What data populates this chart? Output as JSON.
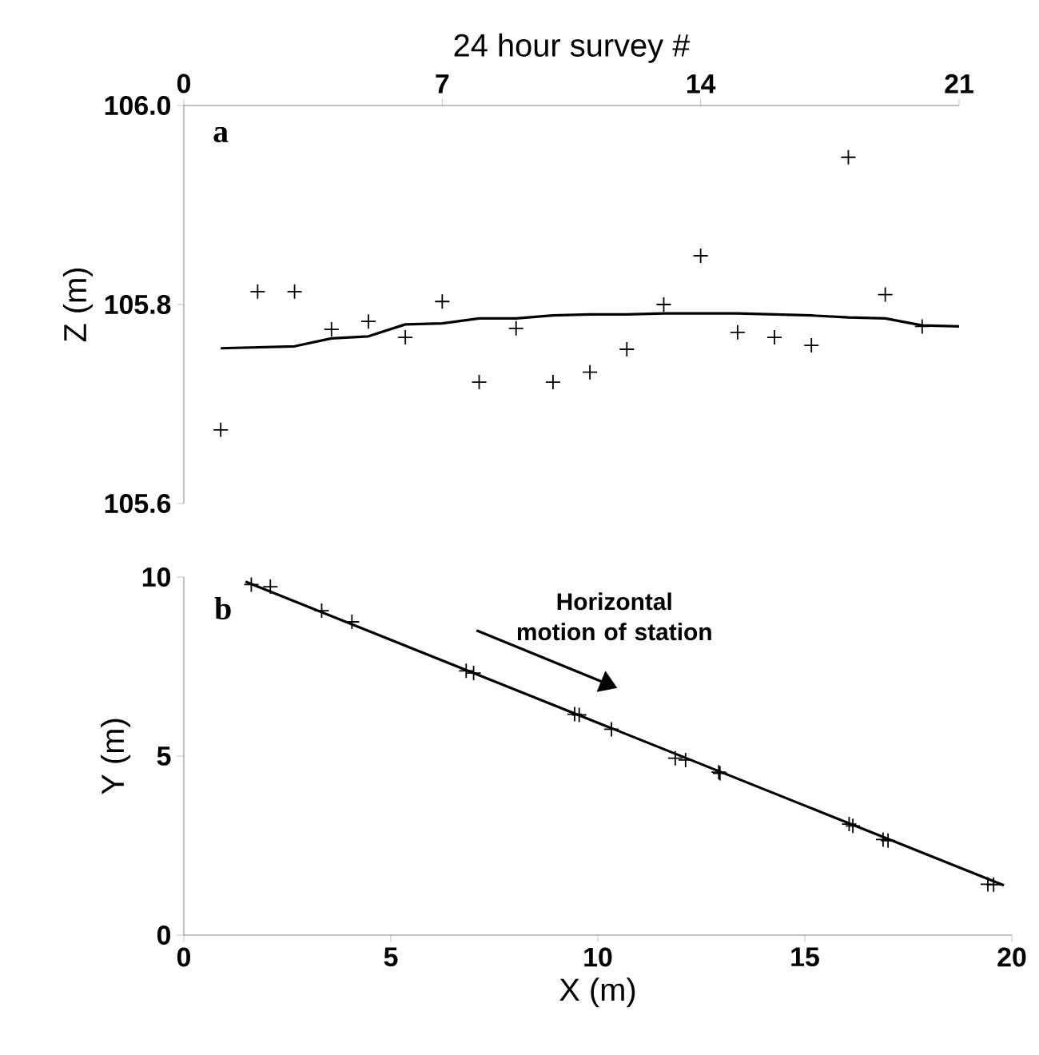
{
  "chart_data": [
    {
      "type": "scatter",
      "annotations": [
        "a"
      ],
      "xlabel": "24 hour survey #",
      "ylabel": "Z (m)",
      "xlim": [
        0,
        21
      ],
      "xticks": [
        0,
        7,
        14,
        21
      ],
      "ylim": [
        105.6,
        106.0
      ],
      "yticks": [
        {
          "value": 105.6,
          "label": "105.6"
        },
        {
          "value": 105.8,
          "label": "105.8"
        },
        {
          "value": 106.0,
          "label": "106.0"
        }
      ],
      "series": [
        {
          "marker": "cross",
          "color": "#000000",
          "x": [
            1,
            2,
            3,
            4,
            5,
            6,
            7,
            8,
            9,
            10,
            11,
            12,
            13,
            14,
            15,
            16,
            17,
            18,
            19,
            20
          ],
          "values": [
            105.674,
            105.813,
            105.813,
            105.775,
            105.783,
            105.767,
            105.803,
            105.722,
            105.776,
            105.722,
            105.732,
            105.755,
            105.8,
            105.849,
            105.772,
            105.767,
            105.759,
            105.948,
            105.81,
            105.778
          ]
        },
        {
          "type": "line",
          "marker": "none",
          "color": "#000000",
          "x": [
            1,
            3,
            4,
            5,
            6,
            7,
            8,
            9,
            10,
            11,
            12,
            13,
            14,
            15,
            16,
            17,
            18,
            19,
            20,
            21
          ],
          "values": [
            105.756,
            105.758,
            105.766,
            105.768,
            105.78,
            105.781,
            105.786,
            105.786,
            105.789,
            105.79,
            105.79,
            105.791,
            105.791,
            105.791,
            105.79,
            105.789,
            105.787,
            105.786,
            105.779,
            105.778
          ]
        }
      ]
    },
    {
      "type": "scatter",
      "annotations": [
        "b",
        "Horizontal motion of station"
      ],
      "xlabel": "X (m)",
      "ylabel": "Y (m)",
      "xlim": [
        0,
        20
      ],
      "xticks": [
        0,
        5,
        10,
        15,
        20
      ],
      "ylim": [
        0,
        10
      ],
      "yticks": [
        0,
        5,
        10
      ],
      "series": [
        {
          "marker": "cross",
          "color": "#000000",
          "x": [
            1.63,
            2.09,
            3.33,
            4.06,
            6.82,
            7.0,
            9.44,
            9.55,
            10.33,
            11.87,
            12.12,
            12.92,
            12.95,
            16.07,
            16.16,
            16.89,
            17.01,
            19.42,
            19.56
          ],
          "values": [
            9.79,
            9.73,
            9.06,
            8.75,
            7.38,
            7.32,
            6.17,
            6.15,
            5.75,
            4.94,
            4.89,
            4.55,
            4.52,
            3.1,
            3.05,
            2.67,
            2.64,
            1.42,
            1.41
          ]
        },
        {
          "type": "line",
          "marker": "none",
          "color": "#000000",
          "x": [
            1.49,
            19.81
          ],
          "values": [
            9.87,
            1.39
          ]
        }
      ]
    }
  ]
}
